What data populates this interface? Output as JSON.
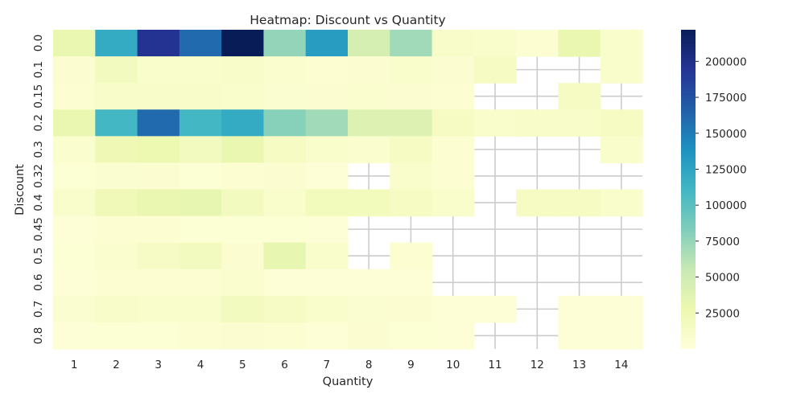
{
  "chart_data": {
    "type": "heatmap",
    "title": "Heatmap: Discount vs Quantity",
    "xlabel": "Quantity",
    "ylabel": "Discount",
    "x_categories": [
      "1",
      "2",
      "3",
      "4",
      "5",
      "6",
      "7",
      "8",
      "9",
      "10",
      "11",
      "12",
      "13",
      "14"
    ],
    "y_categories": [
      "0.0",
      "0.1",
      "0.15",
      "0.2",
      "0.3",
      "0.32",
      "0.4",
      "0.45",
      "0.5",
      "0.6",
      "0.7",
      "0.8"
    ],
    "values": [
      [
        30000,
        120000,
        195000,
        160000,
        222000,
        75000,
        130000,
        45000,
        70000,
        12000,
        10000,
        5000,
        30000,
        10000
      ],
      [
        6000,
        18000,
        10000,
        10000,
        12000,
        8000,
        5000,
        6000,
        9000,
        6000,
        15000,
        null,
        null,
        10000
      ],
      [
        5000,
        12000,
        12000,
        12000,
        10000,
        7000,
        6000,
        8000,
        6000,
        5000,
        null,
        null,
        15000,
        null
      ],
      [
        30000,
        110000,
        160000,
        110000,
        120000,
        80000,
        70000,
        40000,
        40000,
        15000,
        10000,
        12000,
        12000,
        15000
      ],
      [
        8000,
        25000,
        28000,
        18000,
        30000,
        15000,
        10000,
        8000,
        15000,
        5000,
        null,
        null,
        null,
        10000
      ],
      [
        4000,
        7000,
        6000,
        4000,
        5000,
        6000,
        3000,
        null,
        10000,
        5000,
        null,
        null,
        null,
        null
      ],
      [
        10000,
        22000,
        30000,
        32000,
        18000,
        10000,
        20000,
        20000,
        15000,
        9000,
        null,
        15000,
        15000,
        10000
      ],
      [
        3000,
        5000,
        5000,
        4000,
        4000,
        4000,
        3000,
        null,
        null,
        null,
        null,
        null,
        null,
        null
      ],
      [
        4000,
        8000,
        14000,
        18000,
        6000,
        32000,
        10000,
        null,
        5000,
        null,
        null,
        null,
        null,
        null
      ],
      [
        3000,
        5000,
        5000,
        5000,
        8000,
        3000,
        3000,
        3000,
        3000,
        null,
        null,
        null,
        null,
        null
      ],
      [
        7000,
        12000,
        9000,
        10000,
        18000,
        14000,
        9000,
        7000,
        6000,
        3000,
        3000,
        null,
        2000,
        2000
      ],
      [
        3000,
        4000,
        4000,
        5000,
        6000,
        5000,
        3000,
        6000,
        4000,
        3000,
        null,
        null,
        2000,
        2000
      ]
    ],
    "colorbar": {
      "min": 0,
      "max": 222000,
      "ticks": [
        25000,
        50000,
        75000,
        100000,
        125000,
        150000,
        175000,
        200000
      ],
      "colormap": "YlGnBu"
    },
    "grid": true
  }
}
